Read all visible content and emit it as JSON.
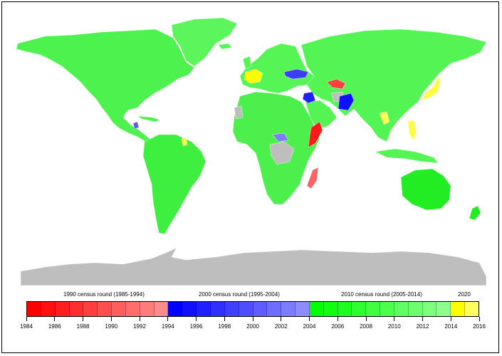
{
  "legend": {
    "rounds": [
      {
        "label": "1990 census round (1985-1994)",
        "center_year": 1989
      },
      {
        "label": "2000 census round (1995-2004)",
        "center_year": 1999
      },
      {
        "label": "2010 census round (2005-2014)",
        "center_year": 2009
      },
      {
        "label": "2020",
        "center_year": 2015
      }
    ],
    "scale_start": 1984,
    "scale_end": 2016,
    "tick_labels": [
      "1984",
      "1986",
      "1988",
      "1990",
      "1992",
      "1994",
      "1996",
      "1998",
      "2000",
      "2002",
      "2004",
      "2006",
      "2008",
      "2010",
      "2012",
      "2014",
      "2016"
    ],
    "bins": [
      {
        "year": 1984,
        "color": "#ff0000"
      },
      {
        "year": 1985,
        "color": "#ff1010"
      },
      {
        "year": 1986,
        "color": "#ff1f1f"
      },
      {
        "year": 1987,
        "color": "#ff2f2f"
      },
      {
        "year": 1988,
        "color": "#ff3f3f"
      },
      {
        "year": 1989,
        "color": "#ff4e4e"
      },
      {
        "year": 1990,
        "color": "#ff5e5e"
      },
      {
        "year": 1991,
        "color": "#ff6d6d"
      },
      {
        "year": 1992,
        "color": "#ff7c7c"
      },
      {
        "year": 1993,
        "color": "#ff8c8c"
      },
      {
        "year": 1994,
        "color": "#0000ff"
      },
      {
        "year": 1995,
        "color": "#1010ff"
      },
      {
        "year": 1996,
        "color": "#1f1fff"
      },
      {
        "year": 1997,
        "color": "#2f2fff"
      },
      {
        "year": 1998,
        "color": "#3f3fff"
      },
      {
        "year": 1999,
        "color": "#4e4eff"
      },
      {
        "year": 2000,
        "color": "#5e5eff"
      },
      {
        "year": 2001,
        "color": "#6d6dff"
      },
      {
        "year": 2002,
        "color": "#7c7cff"
      },
      {
        "year": 2003,
        "color": "#8c8cff"
      },
      {
        "year": 2004,
        "color": "#00ff00"
      },
      {
        "year": 2005,
        "color": "#10ff10"
      },
      {
        "year": 2006,
        "color": "#1fff1f"
      },
      {
        "year": 2007,
        "color": "#2fff2f"
      },
      {
        "year": 2008,
        "color": "#3fff3f"
      },
      {
        "year": 2009,
        "color": "#4eff4e"
      },
      {
        "year": 2010,
        "color": "#5eff5e"
      },
      {
        "year": 2011,
        "color": "#6dff6d"
      },
      {
        "year": 2012,
        "color": "#7cff7c"
      },
      {
        "year": 2013,
        "color": "#8cff8c"
      },
      {
        "year": 2014,
        "color": "#ffff00"
      },
      {
        "year": 2015,
        "color": "#ffff60"
      }
    ]
  },
  "map": {
    "no_data_color": "#bebebe",
    "regions": [
      {
        "name": "north-america",
        "color": "#4ef24e"
      },
      {
        "name": "greenland",
        "color": "#5cf55c"
      },
      {
        "name": "south-america",
        "color": "#3fef3f"
      },
      {
        "name": "europe",
        "color": "#55f555"
      },
      {
        "name": "africa",
        "color": "#4cef4c"
      },
      {
        "name": "asia",
        "color": "#55f455"
      },
      {
        "name": "australia",
        "color": "#22ec22"
      },
      {
        "name": "antarctica",
        "color": "#bebebe"
      },
      {
        "name": "france",
        "color": "#ffff00"
      },
      {
        "name": "ukraine",
        "color": "#3d3dff"
      },
      {
        "name": "uzbekistan",
        "color": "#ff4040"
      },
      {
        "name": "iraq",
        "color": "#2020ff"
      },
      {
        "name": "afghanistan",
        "color": "#bebebe"
      },
      {
        "name": "pakistan",
        "color": "#1010ff"
      },
      {
        "name": "somalia",
        "color": "#ff1a1a"
      },
      {
        "name": "madagascar",
        "color": "#ff6464"
      },
      {
        "name": "japan",
        "color": "#ffff40"
      },
      {
        "name": "philippines",
        "color": "#ffff40"
      },
      {
        "name": "myanmar",
        "color": "#ffff50"
      },
      {
        "name": "drc",
        "color": "#bebebe"
      },
      {
        "name": "central-african-rep",
        "color": "#7c7cff"
      },
      {
        "name": "western-sahara",
        "color": "#bebebe"
      },
      {
        "name": "guyana",
        "color": "#ffff40"
      },
      {
        "name": "el-salvador",
        "color": "#5a5aff"
      }
    ]
  }
}
